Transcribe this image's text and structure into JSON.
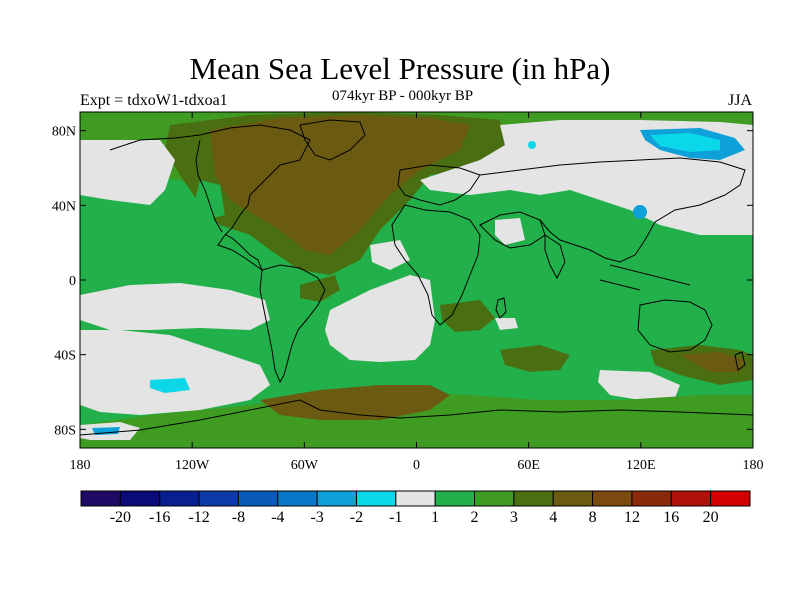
{
  "title": "Mean Sea Level Pressure (in hPa)",
  "experiment_label": "Expt = tdxoW1-tdxoa1",
  "period_label": "074kyr BP - 000kyr BP",
  "season_label": "JJA",
  "map": {
    "projection": "cylindrical equidistant",
    "lon_range": [
      -180,
      180
    ],
    "lat_range": [
      -90,
      90
    ],
    "x_ticks": [
      {
        "value": -180,
        "label": "180"
      },
      {
        "value": -120,
        "label": "120W"
      },
      {
        "value": -60,
        "label": "60W"
      },
      {
        "value": 0,
        "label": "0"
      },
      {
        "value": 60,
        "label": "60E"
      },
      {
        "value": 120,
        "label": "120E"
      },
      {
        "value": 180,
        "label": "180"
      }
    ],
    "y_ticks": [
      {
        "value": 80,
        "label": "80N"
      },
      {
        "value": 40,
        "label": "40N"
      },
      {
        "value": 0,
        "label": "0"
      },
      {
        "value": -40,
        "label": "40S"
      },
      {
        "value": -80,
        "label": "80S"
      }
    ]
  },
  "colorbar": {
    "colors": [
      "#1e0a64",
      "#0a0a78",
      "#08208f",
      "#0a3aa6",
      "#0a5ab8",
      "#0a78c8",
      "#0ea0d8",
      "#0ad8e8",
      "#e4e4e4",
      "#22b04a",
      "#3f9b22",
      "#4a6e12",
      "#6b5a12",
      "#7a4a10",
      "#8a2a0a",
      "#b0100a",
      "#d40000"
    ],
    "labels": [
      "-20",
      "-16",
      "-12",
      "-8",
      "-4",
      "-3",
      "-2",
      "-1",
      "1",
      "2",
      "3",
      "4",
      "8",
      "12",
      "16",
      "20"
    ]
  },
  "palette": {
    "land_green": "#22b04a",
    "light_gray": "#e4e4e4",
    "dark_green": "#3f9b22",
    "olive": "#4a6e12",
    "brown": "#6b5a12",
    "dark_brown": "#7a4a10",
    "cyan": "#0ad8e8",
    "light_blue": "#0ea0d8"
  }
}
